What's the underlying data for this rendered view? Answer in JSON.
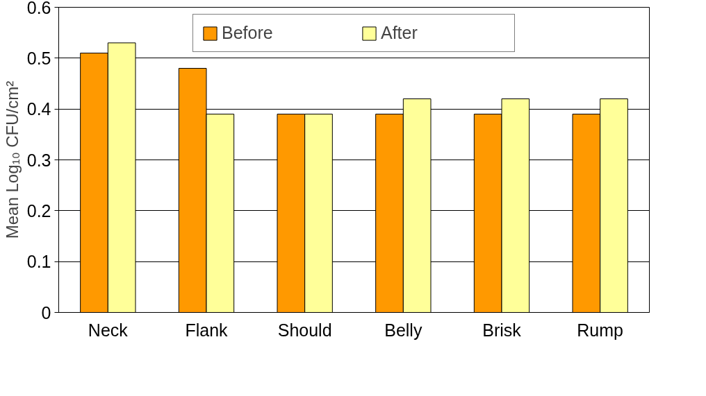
{
  "chart_data": {
    "type": "bar",
    "ylabel": "Mean Log₁₀ CFU/cm²",
    "categories": [
      "Neck",
      "Flank",
      "Should",
      "Belly",
      "Brisk",
      "Rump"
    ],
    "series": [
      {
        "name": "Before",
        "color": "#ff9900",
        "values": [
          0.51,
          0.48,
          0.39,
          0.39,
          0.39,
          0.39
        ]
      },
      {
        "name": "After",
        "color": "#ffff99",
        "values": [
          0.53,
          0.39,
          0.39,
          0.42,
          0.42,
          0.42
        ]
      }
    ],
    "ylim": [
      0,
      0.6
    ],
    "yticks": [
      0,
      0.1,
      0.2,
      0.3,
      0.4,
      0.5,
      0.6
    ],
    "grid": "y",
    "legend": "top"
  }
}
